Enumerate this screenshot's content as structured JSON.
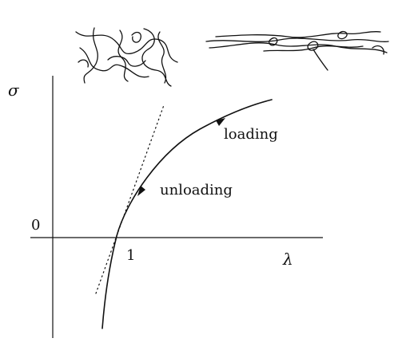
{
  "diagram": {
    "y_axis_symbol": "σ",
    "x_axis_symbol": "λ",
    "origin_label": "0",
    "tick_label_one": "1",
    "curve_labels": {
      "loading": "loading",
      "unloading": "unloading"
    },
    "illustrations": {
      "left": "tangled-polymer-chains",
      "right": "stretched-polymer-chains"
    },
    "colors": {
      "ink": "#111111",
      "background": "#ffffff"
    }
  }
}
